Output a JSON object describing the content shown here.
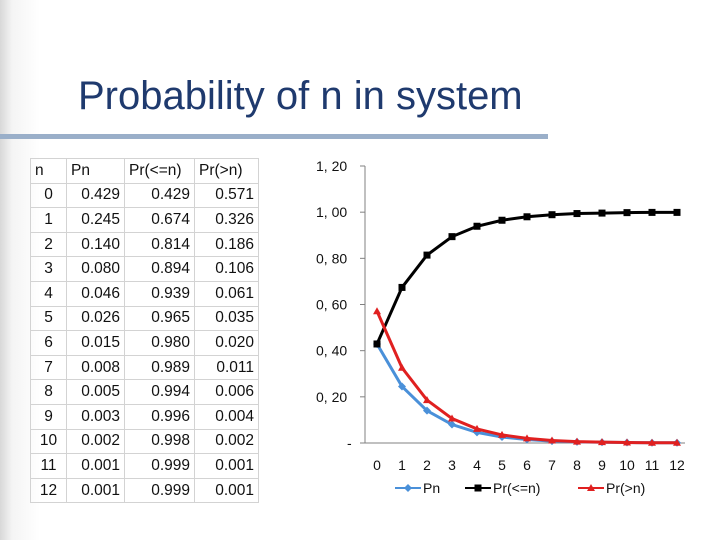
{
  "title": "Probability of n in system",
  "table": {
    "headers": [
      "n",
      "Pn",
      "Pr(<=n)",
      "Pr(>n)"
    ],
    "rows": [
      [
        "0",
        "0.429",
        "0.429",
        "0.571"
      ],
      [
        "1",
        "0.245",
        "0.674",
        "0.326"
      ],
      [
        "2",
        "0.140",
        "0.814",
        "0.186"
      ],
      [
        "3",
        "0.080",
        "0.894",
        "0.106"
      ],
      [
        "4",
        "0.046",
        "0.939",
        "0.061"
      ],
      [
        "5",
        "0.026",
        "0.965",
        "0.035"
      ],
      [
        "6",
        "0.015",
        "0.980",
        "0.020"
      ],
      [
        "7",
        "0.008",
        "0.989",
        "0.011"
      ],
      [
        "8",
        "0.005",
        "0.994",
        "0.006"
      ],
      [
        "9",
        "0.003",
        "0.996",
        "0.004"
      ],
      [
        "10",
        "0.002",
        "0.998",
        "0.002"
      ],
      [
        "11",
        "0.001",
        "0.999",
        "0.001"
      ],
      [
        "12",
        "0.001",
        "0.999",
        "0.001"
      ]
    ]
  },
  "chart_data": {
    "type": "line",
    "x": [
      0,
      1,
      2,
      3,
      4,
      5,
      6,
      7,
      8,
      9,
      10,
      11,
      12
    ],
    "y_tick_labels": [
      "-",
      "0, 20",
      "0, 40",
      "0, 60",
      "0, 80",
      "1, 00",
      "1, 20"
    ],
    "ylim": [
      0,
      1.2
    ],
    "legend_position": "bottom",
    "grid": false,
    "series": [
      {
        "name": "Pn",
        "color": "#4a90d9",
        "marker": "diamond",
        "values": [
          0.429,
          0.245,
          0.14,
          0.08,
          0.046,
          0.026,
          0.015,
          0.008,
          0.005,
          0.003,
          0.002,
          0.001,
          0.001
        ]
      },
      {
        "name": "Pr(<=n)",
        "color": "#000000",
        "marker": "square",
        "values": [
          0.429,
          0.674,
          0.814,
          0.894,
          0.939,
          0.965,
          0.98,
          0.989,
          0.994,
          0.996,
          0.998,
          0.999,
          0.999
        ]
      },
      {
        "name": "Pr(>n)",
        "color": "#e02020",
        "marker": "triangle",
        "values": [
          0.571,
          0.326,
          0.186,
          0.106,
          0.061,
          0.035,
          0.02,
          0.011,
          0.006,
          0.004,
          0.002,
          0.001,
          0.001
        ]
      }
    ]
  }
}
